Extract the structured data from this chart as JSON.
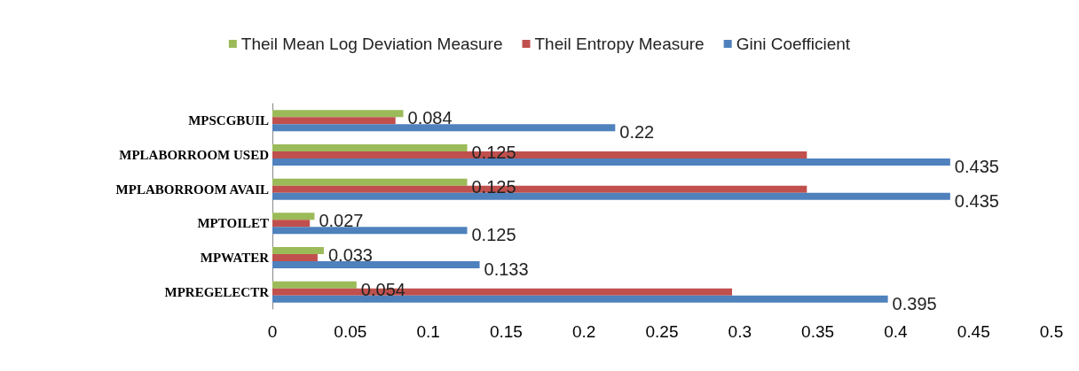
{
  "chart_data": {
    "type": "bar",
    "orientation": "horizontal",
    "categories": [
      "MPSCGBUIL",
      "MPLABORROOM USED",
      "MPLABORROOM AVAIL",
      "MPTOILET",
      "MPWATER",
      "MPREGELECTR"
    ],
    "series": [
      {
        "name": "Theil Mean Log Deviation Measure",
        "color": "#9bbb59",
        "values": [
          0.084,
          0.125,
          0.125,
          0.027,
          0.033,
          0.054
        ],
        "value_labels": [
          "0.084",
          "0.125",
          "0.125",
          "0.027",
          "0.033",
          "0.054"
        ]
      },
      {
        "name": "Theil Entropy Measure",
        "color": "#c0504d",
        "values": [
          0.079,
          0.343,
          0.343,
          0.024,
          0.029,
          0.295
        ]
      },
      {
        "name": "Gini Coefficient",
        "color": "#4f81bd",
        "values": [
          0.22,
          0.435,
          0.435,
          0.125,
          0.133,
          0.395
        ],
        "value_labels": [
          "0.22",
          "0.435",
          "0.435",
          "0.125",
          "0.133",
          "0.395"
        ]
      }
    ],
    "xlim": [
      0,
      0.5
    ],
    "xticks": [
      0,
      0.05,
      0.1,
      0.15,
      0.2,
      0.25,
      0.3,
      0.35,
      0.4,
      0.45,
      0.5
    ],
    "grid": false,
    "legend": "top"
  }
}
